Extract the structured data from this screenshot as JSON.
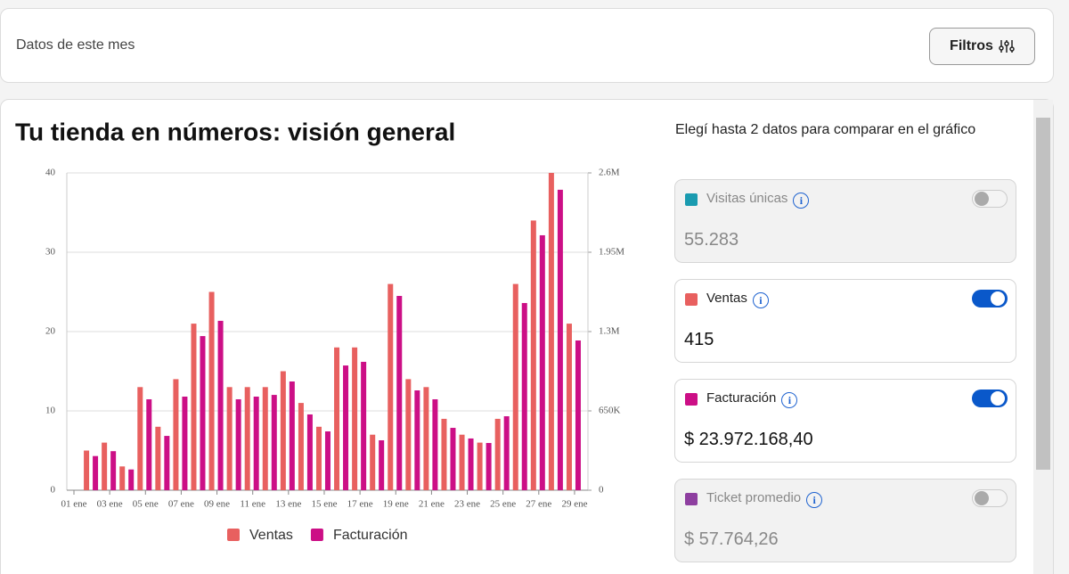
{
  "header": {
    "title": "Datos de este mes",
    "button": "Filtros"
  },
  "panel": {
    "heading": "Elegí hasta 2 datos para comparar en el gráfico",
    "metrics": [
      {
        "name": "Visitas únicas",
        "value": "55.283",
        "color": "#1a9bb0",
        "enabled": false
      },
      {
        "name": "Ventas",
        "value": "415",
        "color": "#e8605f",
        "enabled": true
      },
      {
        "name": "Facturación",
        "value": "$ 23.972.168,40",
        "color": "#cc0f86",
        "enabled": true
      },
      {
        "name": "Ticket promedio",
        "value": "$ 57.764,26",
        "color": "#8e3fa0",
        "enabled": false
      }
    ]
  },
  "chart_data": {
    "type": "bar",
    "title": "Tu tienda en números: visión general",
    "categories": [
      "01 ene",
      null,
      "03 ene",
      null,
      "05 ene",
      null,
      "07 ene",
      null,
      "09 ene",
      null,
      "11 ene",
      null,
      "13 ene",
      null,
      "15 ene",
      null,
      "17 ene",
      null,
      "19 ene",
      null,
      "21 ene",
      null,
      "23 ene",
      null,
      "25 ene",
      null,
      "27 ene",
      null,
      "29 ene"
    ],
    "series": [
      {
        "name": "Ventas",
        "color": "#e8605f",
        "values": [
          0,
          5,
          6,
          3,
          13,
          8,
          14,
          21,
          25,
          13,
          13,
          13,
          15,
          11,
          8,
          18,
          18,
          7,
          26,
          14,
          13,
          9,
          7,
          6,
          9,
          26,
          34,
          40,
          21
        ]
      },
      {
        "name": "Facturación",
        "color": "#cc0f86",
        "axis": "y2",
        "values": [
          0,
          280000,
          320000,
          170000,
          745000,
          445000,
          767000,
          1263000,
          1388000,
          745000,
          767000,
          781000,
          891000,
          621000,
          482000,
          1022000,
          1052000,
          409000,
          1592000,
          818000,
          745000,
          511000,
          424000,
          387000,
          606000,
          1534000,
          2089000,
          2462000,
          1227000
        ]
      }
    ],
    "ylim": [
      0,
      40
    ],
    "yticks": [
      0,
      10,
      20,
      30,
      40
    ],
    "y2lim": [
      0,
      2600000
    ],
    "y2ticks": [
      0,
      {
        "value": 650000,
        "label": "650K"
      },
      {
        "value": 1300000,
        "label": "1.3M"
      },
      {
        "value": 1950000,
        "label": "1.95M"
      },
      {
        "value": 2600000,
        "label": "2.6M"
      }
    ],
    "grid": true,
    "legend": "bottom"
  }
}
